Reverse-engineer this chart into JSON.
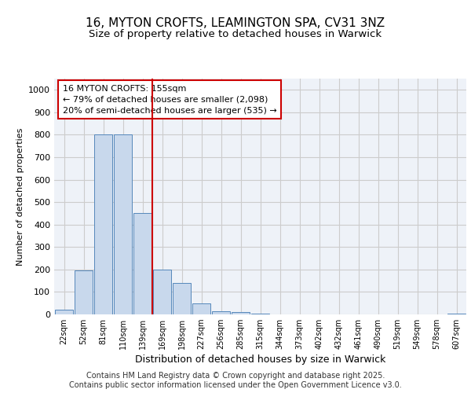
{
  "title_line1": "16, MYTON CROFTS, LEAMINGTON SPA, CV31 3NZ",
  "title_line2": "Size of property relative to detached houses in Warwick",
  "xlabel": "Distribution of detached houses by size in Warwick",
  "ylabel": "Number of detached properties",
  "categories": [
    "22sqm",
    "52sqm",
    "81sqm",
    "110sqm",
    "139sqm",
    "169sqm",
    "198sqm",
    "227sqm",
    "256sqm",
    "285sqm",
    "315sqm",
    "344sqm",
    "373sqm",
    "402sqm",
    "432sqm",
    "461sqm",
    "490sqm",
    "519sqm",
    "549sqm",
    "578sqm",
    "607sqm"
  ],
  "values": [
    20,
    195,
    800,
    800,
    450,
    200,
    140,
    50,
    15,
    10,
    5,
    0,
    0,
    0,
    0,
    0,
    0,
    0,
    0,
    0,
    5
  ],
  "bar_color": "#c8d8ec",
  "bar_edge_color": "#5588bb",
  "property_line_color": "#cc0000",
  "property_line_x": 4.5,
  "annotation_text": "16 MYTON CROFTS: 155sqm\n← 79% of detached houses are smaller (2,098)\n20% of semi-detached houses are larger (535) →",
  "annotation_box_color": "#cc0000",
  "ylim": [
    0,
    1050
  ],
  "yticks": [
    0,
    100,
    200,
    300,
    400,
    500,
    600,
    700,
    800,
    900,
    1000
  ],
  "grid_color": "#cccccc",
  "background_color": "#eef2f8",
  "footer_text": "Contains HM Land Registry data © Crown copyright and database right 2025.\nContains public sector information licensed under the Open Government Licence v3.0.",
  "title_fontsize": 11,
  "subtitle_fontsize": 9.5,
  "annotation_fontsize": 8,
  "footer_fontsize": 7,
  "ylabel_fontsize": 8,
  "xlabel_fontsize": 9,
  "ytick_fontsize": 8,
  "xtick_fontsize": 7
}
